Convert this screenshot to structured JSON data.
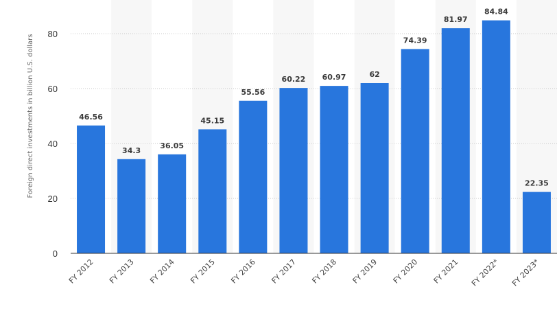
{
  "chart_data": {
    "type": "bar",
    "categories": [
      "FY 2012",
      "FY 2013",
      "FY 2014",
      "FY 2015",
      "FY 2016",
      "FY 2017",
      "FY 2018",
      "FY 2019",
      "FY 2020",
      "FY 2021",
      "FY 2022*",
      "FY 2023*"
    ],
    "values": [
      46.56,
      34.3,
      36.05,
      45.15,
      55.56,
      60.22,
      60.97,
      62,
      74.39,
      81.97,
      84.84,
      22.35
    ],
    "value_labels": [
      "46.56",
      "34.3",
      "36.05",
      "45.15",
      "55.56",
      "60.22",
      "60.97",
      "62",
      "74.39",
      "81.97",
      "84.84",
      "22.35"
    ],
    "ylabel": "Foreign direct investments in billion U.S. dollars",
    "xlabel": "",
    "ylim": [
      0,
      80
    ],
    "yticks": [
      "0",
      "20",
      "40",
      "60",
      "80"
    ],
    "grid": true,
    "colors": {
      "bar": "#2876dd",
      "band": "#f7f7f7",
      "grid": "#c8c8c8",
      "axis": "#333333"
    }
  }
}
